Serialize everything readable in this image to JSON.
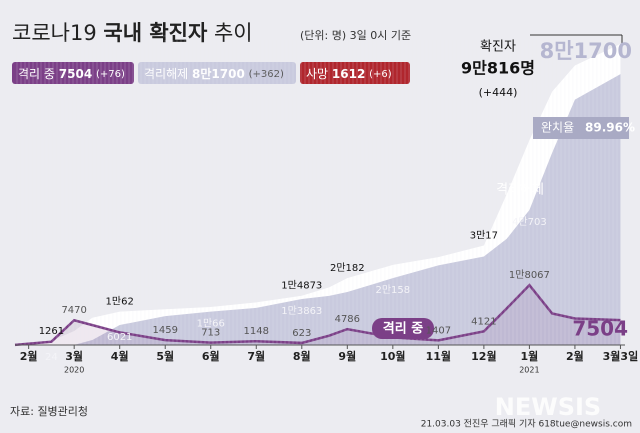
{
  "chart_data": {
    "type": "area",
    "title_parts": [
      "코로나19",
      "국내 확진자",
      "추이"
    ],
    "subtitle": "(단위: 명) 3일 0시 기준",
    "summary": [
      {
        "name": "격리 중",
        "value": "7504",
        "change": "(+76)",
        "color": "#7b3f87"
      },
      {
        "name": "격리해제",
        "value": "8만1700",
        "change": "(+362)",
        "color": "#c9cade"
      },
      {
        "name": "사망",
        "value": "1612",
        "change": "(+6)",
        "color": "#b0262d"
      }
    ],
    "x": [
      -0.3,
      0.5,
      1.0,
      1.4,
      2.0,
      3.0,
      4.0,
      5.0,
      6.0,
      6.6,
      7.0,
      8.0,
      9.0,
      10.0,
      10.5,
      11.0,
      11.5,
      12.0,
      13.0
    ],
    "xlim": [
      -0.3,
      13.1
    ],
    "xticks": [
      {
        "value": 0,
        "label": "2월"
      },
      {
        "value": 1,
        "label": "3월"
      },
      {
        "value": 2,
        "label": "4월"
      },
      {
        "value": 3,
        "label": "5월"
      },
      {
        "value": 4,
        "label": "6월"
      },
      {
        "value": 5,
        "label": "7월"
      },
      {
        "value": 6,
        "label": "8월"
      },
      {
        "value": 7,
        "label": "9월"
      },
      {
        "value": 8,
        "label": "10월"
      },
      {
        "value": 9,
        "label": "11월"
      },
      {
        "value": 10,
        "label": "12월"
      },
      {
        "value": 11,
        "label": "1월"
      },
      {
        "value": 12,
        "label": "2월"
      },
      {
        "value": 13,
        "label": "3월3일"
      }
    ],
    "x_sublabels": [
      {
        "value": 1,
        "label": "2020"
      },
      {
        "value": 11,
        "label": "2021"
      }
    ],
    "ylim": [
      0,
      92000
    ],
    "series": [
      {
        "name": "확진자",
        "color": "#ffffff",
        "values": [
          30,
          1261,
          4212,
          8236,
          10062,
          10774,
          11468,
          12850,
          14873,
          17399,
          20182,
          24164,
          26511,
          30017,
          45442,
          61769,
          76429,
          84325,
          90816
        ],
        "value_labels": [
          null,
          "1261",
          null,
          null,
          "1만62",
          null,
          null,
          null,
          "1만4873",
          null,
          "2만182",
          null,
          null,
          "3만17",
          null,
          null,
          null,
          null,
          "9만816명"
        ]
      },
      {
        "name": "격리해제",
        "color": "#c9cade",
        "values": [
          0,
          24,
          30,
          1500,
          6021,
          8700,
          10066,
          11200,
          13863,
          14800,
          16000,
          20158,
          24000,
          26700,
          32000,
          40703,
          58000,
          74000,
          81700
        ],
        "value_labels": [
          null,
          "24",
          null,
          null,
          "6021",
          null,
          "1만66",
          null,
          "1만3863",
          null,
          null,
          "2만158",
          null,
          null,
          null,
          "4만703",
          null,
          null,
          "8만1700"
        ]
      },
      {
        "name": "격리 중",
        "color": "#7b3f87",
        "values": [
          30,
          1000,
          7470,
          6000,
          3800,
          1459,
          713,
          1148,
          623,
          2800,
          4786,
          2300,
          1407,
          4121,
          11000,
          18067,
          9500,
          8000,
          7504
        ],
        "value_labels": [
          null,
          null,
          "7470",
          null,
          null,
          "1459",
          "713",
          "1148",
          "623",
          null,
          "4786",
          null,
          "1407",
          "4121",
          null,
          "1만8067",
          null,
          null,
          "7504"
        ]
      }
    ],
    "confirmed_caption": "확진자",
    "confirmed_change": "(+444)",
    "recovery_caption": "완치율",
    "recovery_rate": "89.96%",
    "source": "자료: 질병관리청",
    "credit": "21.03.03 전진우 그래픽 기자 618tue@newsis.com",
    "watermark": "NEWSIS"
  }
}
